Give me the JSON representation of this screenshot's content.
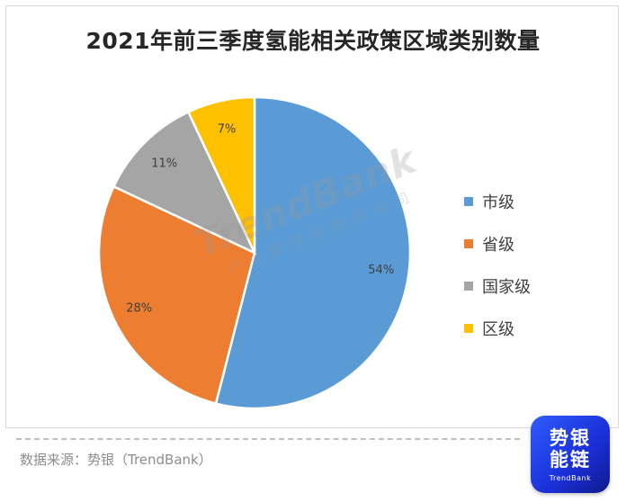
{
  "chart_data": {
    "type": "pie",
    "title": "2021年前三季度氢能相关政策区域类别数量",
    "categories": [
      "市级",
      "省级",
      "国家级",
      "区级"
    ],
    "values": [
      54,
      28,
      11,
      7
    ],
    "labels": [
      "54%",
      "28%",
      "11%",
      "7%"
    ],
    "colors": [
      "#5b9bd5",
      "#ed7d31",
      "#a5a5a5",
      "#ffc000"
    ],
    "legend_position": "right"
  },
  "watermark": {
    "main": "TrendBank",
    "sub": "产业研究与顾问公司"
  },
  "source": "数据来源：势银（TrendBank）",
  "logo": {
    "line1": "势银",
    "line2": "能链",
    "line3": "TrendBank"
  }
}
